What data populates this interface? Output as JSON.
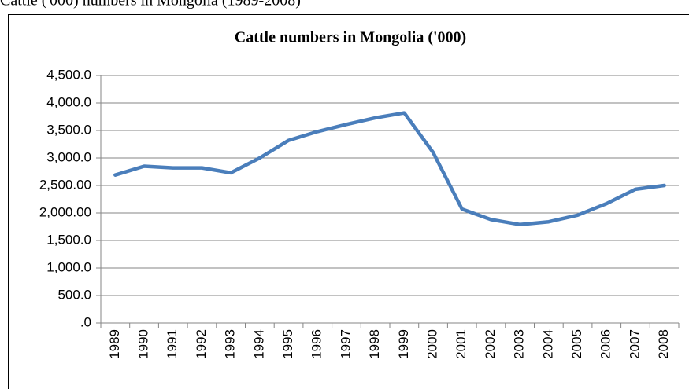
{
  "caption": "Cattle ('000) numbers in Mongolia (1989-2008)",
  "chart_data": {
    "type": "line",
    "title": "Cattle numbers in Mongolia ('000)",
    "categories": [
      "1989",
      "1990",
      "1991",
      "1992",
      "1993",
      "1994",
      "1995",
      "1996",
      "1997",
      "1998",
      "1999",
      "2000",
      "2001",
      "2002",
      "2003",
      "2004",
      "2005",
      "2006",
      "2007",
      "2008"
    ],
    "series": [
      {
        "color": "#4a7ebb",
        "values": [
          2690,
          2850,
          2820,
          2820,
          2730,
          3000,
          3320,
          3480,
          3610,
          3730,
          3820,
          3100,
          2070,
          1880,
          1790,
          1840,
          1960,
          2170,
          2430,
          2500
        ]
      }
    ],
    "ylim": [
      0,
      4500
    ],
    "yticks": [
      {
        "value": 0,
        "label": ".0"
      },
      {
        "value": 500,
        "label": "500.0"
      },
      {
        "value": 1000,
        "label": "1,000.0"
      },
      {
        "value": 1500,
        "label": "1,500.0"
      },
      {
        "value": 2000,
        "label": "2,000.00"
      },
      {
        "value": 2500,
        "label": "2,500.00"
      },
      {
        "value": 3000,
        "label": "3,000.0"
      },
      {
        "value": 3500,
        "label": "3,500.0"
      },
      {
        "value": 4000,
        "label": "4,000.0"
      },
      {
        "value": 4500,
        "label": "4,500.0"
      }
    ],
    "grid": true
  }
}
